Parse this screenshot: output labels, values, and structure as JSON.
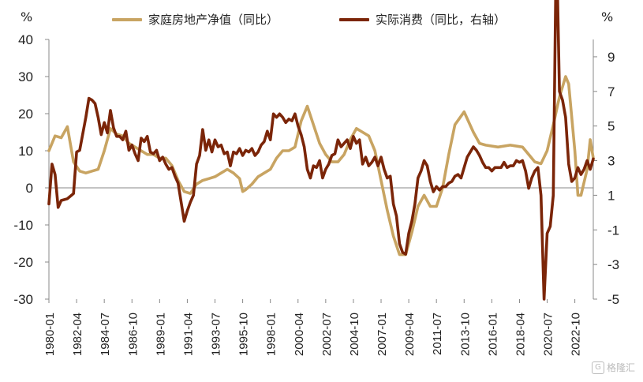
{
  "units": {
    "left": "%",
    "right": "%"
  },
  "legend": [
    {
      "label": "家庭房地产净值（同比）",
      "color": "#C8A462"
    },
    {
      "label": "实际消费（同比，右轴）",
      "color": "#7B2508"
    }
  ],
  "watermark": {
    "mark": "G",
    "text": "格隆汇"
  },
  "chart_data": {
    "type": "line",
    "x_tick_labels": [
      "1980-01",
      "1982-04",
      "1984-07",
      "1986-10",
      "1989-01",
      "1991-04",
      "1993-07",
      "1995-10",
      "1998-01",
      "2000-04",
      "2002-07",
      "2004-10",
      "2007-01",
      "2009-04",
      "2011-07",
      "2013-10",
      "2016-01",
      "2018-04",
      "2020-07",
      "2022-10"
    ],
    "x_range": [
      "1980-01",
      "2024-04"
    ],
    "y_left": {
      "label": "%",
      "range": [
        -30,
        40
      ],
      "ticks": [
        -30,
        -20,
        -10,
        0,
        10,
        20,
        30,
        40
      ]
    },
    "y_right": {
      "label": "%",
      "range": [
        -5,
        10
      ],
      "ticks": [
        -5,
        -3,
        -1,
        1,
        3,
        5,
        7,
        9
      ]
    },
    "grid": false,
    "legend_position": "top",
    "series": [
      {
        "name": "家庭房地产净值（同比）",
        "axis": "left",
        "color": "#C8A462",
        "points": [
          [
            "1980-01",
            10
          ],
          [
            "1980-07",
            14
          ],
          [
            "1981-01",
            13.5
          ],
          [
            "1981-07",
            16.5
          ],
          [
            "1982-01",
            7
          ],
          [
            "1982-07",
            4.5
          ],
          [
            "1983-01",
            4
          ],
          [
            "1983-07",
            4.5
          ],
          [
            "1984-01",
            5
          ],
          [
            "1984-07",
            10
          ],
          [
            "1985-01",
            16
          ],
          [
            "1985-07",
            14.5
          ],
          [
            "1986-01",
            14
          ],
          [
            "1986-07",
            12
          ],
          [
            "1987-01",
            11
          ],
          [
            "1987-07",
            10
          ],
          [
            "1988-01",
            9
          ],
          [
            "1988-07",
            9
          ],
          [
            "1989-01",
            8
          ],
          [
            "1989-07",
            8
          ],
          [
            "1990-01",
            6
          ],
          [
            "1990-07",
            2
          ],
          [
            "1991-01",
            -1
          ],
          [
            "1991-07",
            -1.5
          ],
          [
            "1992-01",
            1
          ],
          [
            "1992-07",
            2
          ],
          [
            "1993-01",
            2.5
          ],
          [
            "1993-07",
            3
          ],
          [
            "1994-01",
            4
          ],
          [
            "1994-07",
            5
          ],
          [
            "1995-01",
            4
          ],
          [
            "1995-07",
            2.5
          ],
          [
            "1995-10",
            -1
          ],
          [
            "1996-01",
            -0.5
          ],
          [
            "1996-07",
            1
          ],
          [
            "1997-01",
            3
          ],
          [
            "1997-07",
            4
          ],
          [
            "1998-01",
            5
          ],
          [
            "1998-07",
            8
          ],
          [
            "1999-01",
            10
          ],
          [
            "1999-07",
            10
          ],
          [
            "2000-01",
            11
          ],
          [
            "2000-07",
            18
          ],
          [
            "2001-01",
            22
          ],
          [
            "2001-07",
            17
          ],
          [
            "2002-01",
            12
          ],
          [
            "2002-07",
            9
          ],
          [
            "2003-01",
            7
          ],
          [
            "2003-07",
            7
          ],
          [
            "2004-01",
            9
          ],
          [
            "2004-07",
            13
          ],
          [
            "2005-01",
            16
          ],
          [
            "2005-07",
            15
          ],
          [
            "2006-01",
            14
          ],
          [
            "2006-07",
            10
          ],
          [
            "2007-01",
            2
          ],
          [
            "2007-07",
            -6
          ],
          [
            "2008-01",
            -13
          ],
          [
            "2008-07",
            -18
          ],
          [
            "2009-01",
            -18
          ],
          [
            "2009-07",
            -12
          ],
          [
            "2010-01",
            -5
          ],
          [
            "2010-07",
            -2
          ],
          [
            "2011-01",
            -5
          ],
          [
            "2011-07",
            -5
          ],
          [
            "2012-01",
            0
          ],
          [
            "2012-07",
            9
          ],
          [
            "2013-01",
            17
          ],
          [
            "2013-10",
            20.5
          ],
          [
            "2014-07",
            15
          ],
          [
            "2015-01",
            12
          ],
          [
            "2015-07",
            11.5
          ],
          [
            "2016-07",
            11
          ],
          [
            "2017-07",
            11.5
          ],
          [
            "2018-07",
            11
          ],
          [
            "2019-01",
            9
          ],
          [
            "2019-07",
            7
          ],
          [
            "2020-01",
            6.5
          ],
          [
            "2020-07",
            10
          ],
          [
            "2021-01",
            17
          ],
          [
            "2021-07",
            24.5
          ],
          [
            "2022-01",
            30
          ],
          [
            "2022-04",
            28
          ],
          [
            "2022-10",
            10
          ],
          [
            "2023-01",
            -2
          ],
          [
            "2023-04",
            -2
          ],
          [
            "2023-10",
            5
          ],
          [
            "2024-01",
            13
          ],
          [
            "2024-04",
            8
          ]
        ]
      },
      {
        "name": "实际消费（同比，右轴）",
        "axis": "right",
        "color": "#7B2508",
        "points": [
          [
            "1980-01",
            0.5
          ],
          [
            "1980-04",
            2.8
          ],
          [
            "1980-07",
            2.2
          ],
          [
            "1980-10",
            0.3
          ],
          [
            "1981-01",
            0.7
          ],
          [
            "1981-07",
            0.8
          ],
          [
            "1982-01",
            1.1
          ],
          [
            "1982-04",
            3.5
          ],
          [
            "1982-07",
            3.6
          ],
          [
            "1983-01",
            5.5
          ],
          [
            "1983-04",
            6.6
          ],
          [
            "1983-07",
            6.5
          ],
          [
            "1983-10",
            6.3
          ],
          [
            "1984-01",
            5.5
          ],
          [
            "1984-04",
            4.5
          ],
          [
            "1984-07",
            5.2
          ],
          [
            "1984-10",
            4.6
          ],
          [
            "1985-01",
            5.9
          ],
          [
            "1985-04",
            4.9
          ],
          [
            "1985-07",
            4.4
          ],
          [
            "1985-10",
            4.4
          ],
          [
            "1986-01",
            4.2
          ],
          [
            "1986-04",
            4.7
          ],
          [
            "1986-07",
            3.6
          ],
          [
            "1986-10",
            3.9
          ],
          [
            "1987-01",
            3.4
          ],
          [
            "1987-04",
            3.0
          ],
          [
            "1987-07",
            4.3
          ],
          [
            "1987-10",
            4.1
          ],
          [
            "1988-01",
            4.4
          ],
          [
            "1988-04",
            3.5
          ],
          [
            "1988-07",
            3.4
          ],
          [
            "1988-10",
            3.6
          ],
          [
            "1989-01",
            3.0
          ],
          [
            "1989-04",
            3.2
          ],
          [
            "1989-07",
            2.8
          ],
          [
            "1989-10",
            2.5
          ],
          [
            "1990-01",
            2.6
          ],
          [
            "1990-04",
            2.1
          ],
          [
            "1990-07",
            1.7
          ],
          [
            "1991-01",
            -0.5
          ],
          [
            "1991-04",
            0.1
          ],
          [
            "1991-07",
            0.6
          ],
          [
            "1991-10",
            1.0
          ],
          [
            "1992-01",
            2.8
          ],
          [
            "1992-04",
            3.3
          ],
          [
            "1992-07",
            4.8
          ],
          [
            "1992-10",
            3.6
          ],
          [
            "1993-01",
            4.2
          ],
          [
            "1993-04",
            3.5
          ],
          [
            "1993-07",
            4.2
          ],
          [
            "1993-10",
            3.8
          ],
          [
            "1994-01",
            3.9
          ],
          [
            "1994-04",
            3.4
          ],
          [
            "1994-07",
            3.5
          ],
          [
            "1994-10",
            2.7
          ],
          [
            "1995-01",
            3.5
          ],
          [
            "1995-04",
            3.4
          ],
          [
            "1995-07",
            3.7
          ],
          [
            "1995-10",
            3.3
          ],
          [
            "1996-01",
            3.6
          ],
          [
            "1996-04",
            3.5
          ],
          [
            "1996-07",
            3.7
          ],
          [
            "1996-10",
            3.3
          ],
          [
            "1997-01",
            3.5
          ],
          [
            "1997-04",
            3.9
          ],
          [
            "1997-07",
            4.1
          ],
          [
            "1997-10",
            4.7
          ],
          [
            "1998-01",
            4.2
          ],
          [
            "1998-04",
            5.7
          ],
          [
            "1998-07",
            5.5
          ],
          [
            "1998-10",
            5.7
          ],
          [
            "1999-01",
            5.5
          ],
          [
            "1999-04",
            5.2
          ],
          [
            "1999-07",
            5.4
          ],
          [
            "1999-10",
            5.3
          ],
          [
            "2000-01",
            5.7
          ],
          [
            "2000-04",
            5.0
          ],
          [
            "2000-07",
            4.5
          ],
          [
            "2000-10",
            3.8
          ],
          [
            "2001-01",
            2.5
          ],
          [
            "2001-04",
            2.0
          ],
          [
            "2001-07",
            2.7
          ],
          [
            "2001-10",
            2.6
          ],
          [
            "2002-01",
            3.0
          ],
          [
            "2002-04",
            2.0
          ],
          [
            "2002-07",
            2.5
          ],
          [
            "2002-10",
            2.8
          ],
          [
            "2003-01",
            3.3
          ],
          [
            "2003-04",
            3.4
          ],
          [
            "2003-07",
            4.2
          ],
          [
            "2003-10",
            3.8
          ],
          [
            "2004-01",
            4.0
          ],
          [
            "2004-04",
            4.2
          ],
          [
            "2004-07",
            3.7
          ],
          [
            "2004-10",
            4.4
          ],
          [
            "2005-01",
            4.0
          ],
          [
            "2005-04",
            4.2
          ],
          [
            "2005-07",
            2.8
          ],
          [
            "2005-10",
            3.2
          ],
          [
            "2006-01",
            2.7
          ],
          [
            "2006-04",
            2.9
          ],
          [
            "2006-07",
            3.2
          ],
          [
            "2006-10",
            2.7
          ],
          [
            "2007-01",
            3.2
          ],
          [
            "2007-04",
            2.5
          ],
          [
            "2007-07",
            2.0
          ],
          [
            "2007-10",
            2.1
          ],
          [
            "2008-01",
            0.5
          ],
          [
            "2008-04",
            -0.2
          ],
          [
            "2008-07",
            -1.8
          ],
          [
            "2008-10",
            -2.3
          ],
          [
            "2009-01",
            -2.4
          ],
          [
            "2009-04",
            -1.2
          ],
          [
            "2009-07",
            -0.5
          ],
          [
            "2009-10",
            0.5
          ],
          [
            "2010-01",
            2.0
          ],
          [
            "2010-04",
            2.4
          ],
          [
            "2010-07",
            3.0
          ],
          [
            "2010-10",
            2.7
          ],
          [
            "2011-01",
            1.8
          ],
          [
            "2011-04",
            1.2
          ],
          [
            "2011-07",
            1.5
          ],
          [
            "2011-10",
            1.3
          ],
          [
            "2012-01",
            1.5
          ],
          [
            "2012-04",
            1.5
          ],
          [
            "2012-07",
            1.7
          ],
          [
            "2012-10",
            1.8
          ],
          [
            "2013-01",
            2.1
          ],
          [
            "2013-04",
            2.2
          ],
          [
            "2013-07",
            2.0
          ],
          [
            "2013-10",
            2.6
          ],
          [
            "2014-01",
            3.2
          ],
          [
            "2014-04",
            3.5
          ],
          [
            "2014-07",
            3.8
          ],
          [
            "2014-10",
            3.6
          ],
          [
            "2015-01",
            3.3
          ],
          [
            "2015-04",
            2.9
          ],
          [
            "2015-07",
            2.6
          ],
          [
            "2015-10",
            2.6
          ],
          [
            "2016-01",
            2.4
          ],
          [
            "2016-04",
            2.6
          ],
          [
            "2016-07",
            2.6
          ],
          [
            "2016-10",
            2.6
          ],
          [
            "2017-01",
            2.9
          ],
          [
            "2017-04",
            2.6
          ],
          [
            "2017-07",
            2.7
          ],
          [
            "2017-10",
            2.7
          ],
          [
            "2018-01",
            3.0
          ],
          [
            "2018-04",
            2.9
          ],
          [
            "2018-07",
            3.0
          ],
          [
            "2018-10",
            2.4
          ],
          [
            "2019-01",
            1.4
          ],
          [
            "2019-04",
            2.0
          ],
          [
            "2019-07",
            2.4
          ],
          [
            "2019-10",
            2.6
          ],
          [
            "2020-01",
            1.0
          ],
          [
            "2020-04",
            -5.0
          ],
          [
            "2020-07",
            -1.2
          ],
          [
            "2020-10",
            -0.8
          ],
          [
            "2021-01",
            1.0
          ],
          [
            "2021-04",
            16.0
          ],
          [
            "2021-07",
            7.0
          ],
          [
            "2021-10",
            6.5
          ],
          [
            "2022-01",
            5.5
          ],
          [
            "2022-04",
            2.8
          ],
          [
            "2022-07",
            1.8
          ],
          [
            "2022-10",
            2.0
          ],
          [
            "2023-01",
            2.6
          ],
          [
            "2023-04",
            2.2
          ],
          [
            "2023-07",
            2.5
          ],
          [
            "2023-10",
            3.0
          ],
          [
            "2024-01",
            2.5
          ],
          [
            "2024-04",
            3.1
          ]
        ]
      }
    ]
  }
}
